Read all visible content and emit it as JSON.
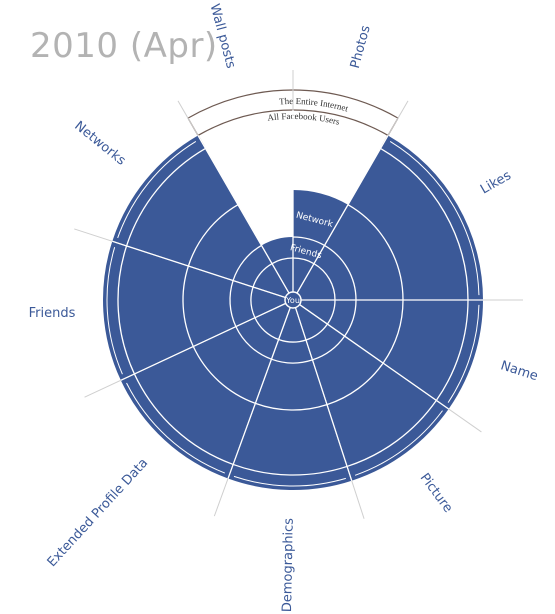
{
  "title": "2010 (Apr)",
  "center_label": "You",
  "inner_labels": {
    "friends": "Friends",
    "network": "Network"
  },
  "band_labels": {
    "outer": "The Entire Internet",
    "inner": "All Facebook Users"
  },
  "colors": {
    "fill": "#3b5998",
    "line": "#ffffff",
    "text": "#3b5998",
    "title": "#b3b3b3",
    "band": "#6e5a52"
  },
  "categories": [
    {
      "name": "Likes",
      "reach": 4,
      "start": 30,
      "end": 90
    },
    {
      "name": "Name",
      "reach": 4,
      "start": 90,
      "end": 125
    },
    {
      "name": "Picture",
      "reach": 4,
      "start": 125,
      "end": 162
    },
    {
      "name": "Demographics",
      "reach": 4,
      "start": 162,
      "end": 200
    },
    {
      "name": "Extended Profile Data",
      "reach": 4,
      "start": 200,
      "end": 245
    },
    {
      "name": "Friends",
      "reach": 4,
      "start": 245,
      "end": 288
    },
    {
      "name": "Networks",
      "reach": 4,
      "start": 288,
      "end": 330
    },
    {
      "name": "Wall posts",
      "reach": 1,
      "start": 330,
      "end": 0
    },
    {
      "name": "Photos",
      "reach": 2,
      "start": 0,
      "end": 30
    }
  ]
}
